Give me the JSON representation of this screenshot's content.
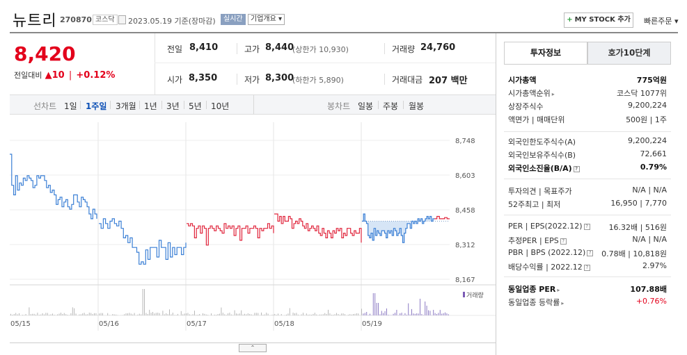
{
  "header": {
    "name": "뉴트리",
    "code": "270870",
    "market": "코스닥",
    "date": "2023.05.19 기준(장마감)",
    "realtime": "실시간",
    "company_overview": "기업개요 ▾",
    "mystock_plus": "+",
    "mystock": "MY STOCK 추가",
    "quick_order": "빠른주문 ▾"
  },
  "price": {
    "current": "8,420",
    "change_label": "전일대비",
    "change_arrow": "▲",
    "change_amount": "10",
    "change_pct": "+0.12%"
  },
  "summary": {
    "prev_label": "전일",
    "prev": "8,410",
    "high_label": "고가",
    "high": "8,440",
    "upper_limit": "(상한가 10,930)",
    "volume_label": "거래량",
    "volume": "24,760",
    "open_label": "시가",
    "open": "8,350",
    "low_label": "저가",
    "low": "8,300",
    "lower_limit": "(하한가 5,890)",
    "amount_label": "거래대금",
    "amount": "207 백만"
  },
  "tabs": {
    "line_label": "선차트",
    "line_periods": [
      "1일",
      "1주일",
      "3개월",
      "1년",
      "3년",
      "5년",
      "10년"
    ],
    "active": "1주일",
    "candle_label": "봉차트",
    "candle_periods": [
      "일봉",
      "주봉",
      "월봉"
    ]
  },
  "chart_data": {
    "type": "line",
    "y_ticks": [
      "8,748",
      "8,603",
      "8,458",
      "8,312",
      "8,167"
    ],
    "ylim": [
      8167,
      8748
    ],
    "x_ticks": [
      "05/15",
      "05/16",
      "05/17",
      "05/18",
      "05/19"
    ],
    "volume_label": "거래량",
    "series": [
      {
        "day": "05/15",
        "color": "#3a7fd5",
        "values": [
          8690,
          8560,
          8520,
          8600,
          8540,
          8570,
          8560,
          8590,
          8580,
          8600,
          8590,
          8580,
          8550,
          8560,
          8600,
          8590,
          8600,
          8600,
          8580,
          8550,
          8560,
          8530,
          8540,
          8520,
          8480,
          8500,
          8510,
          8470,
          8490,
          8500,
          8470,
          8460,
          8480,
          8520,
          8520,
          8490,
          8470,
          8510,
          8500,
          8490,
          8470,
          8440,
          8420,
          8460,
          8440,
          8420
        ]
      },
      {
        "day": "05/16",
        "color": "#3a7fd5",
        "values": [
          8400,
          8380,
          8420,
          8400,
          8380,
          8410,
          8420,
          8400,
          8390,
          8410,
          8380,
          8340,
          8350,
          8320,
          8340,
          8300,
          8300,
          8280,
          8230,
          8240,
          8230,
          8290,
          8250,
          8300,
          8300,
          8300,
          8260,
          8330,
          8300,
          8300,
          8250,
          8320,
          8260,
          8300,
          8270,
          8300,
          8300,
          8270,
          8300,
          8320
        ]
      },
      {
        "day": "05/17",
        "color": "#e0243b",
        "values": [
          8400,
          8390,
          8400,
          8390,
          8340,
          8380,
          8390,
          8360,
          8390,
          8380,
          8310,
          8380,
          8390,
          8380,
          8370,
          8390,
          8380,
          8370,
          8360,
          8400,
          8380,
          8390,
          8380,
          8390,
          8350,
          8380,
          8390,
          8330,
          8380,
          8380,
          8390,
          8360,
          8380,
          8380,
          8390,
          8380,
          8340,
          8380,
          8370,
          8380,
          8380,
          8400,
          8380,
          8390,
          8360
        ]
      },
      {
        "day": "05/18",
        "color": "#e0243b",
        "values": [
          8440,
          8440,
          8410,
          8430,
          8400,
          8430,
          8410,
          8410,
          8430,
          8420,
          8380,
          8400,
          8410,
          8400,
          8420,
          8410,
          8390,
          8380,
          8400,
          8370,
          8380,
          8390,
          8380,
          8370,
          8390,
          8360,
          8350,
          8380,
          8360,
          8340,
          8370,
          8360,
          8340,
          8370,
          8360,
          8380,
          8370,
          8380,
          8340,
          8360,
          8350,
          8380,
          8380,
          8360,
          8350,
          8370,
          8360,
          8360,
          8380,
          8320
        ]
      },
      {
        "day": "05/19",
        "color": "#3a7fd5",
        "fill": true,
        "values": [
          8410,
          8440,
          8410,
          8400,
          8350,
          8340,
          8360,
          8330,
          8380,
          8350,
          8370,
          8360,
          8350,
          8370,
          8370,
          8360,
          8340,
          8370,
          8360,
          8370,
          8350,
          8380,
          8370,
          8350,
          8360,
          8380,
          8350,
          8320,
          8360,
          8380,
          8400,
          8400,
          8380,
          8410,
          8400,
          8410,
          8400,
          8420,
          8410,
          8420,
          8400,
          8410,
          8420,
          8430,
          8420,
          8430,
          8410,
          8420,
          8420
        ]
      },
      {
        "day": "05/19",
        "color": "#e0243b",
        "values": [
          8420,
          8430,
          8420,
          8420,
          8425,
          8420,
          8420
        ]
      }
    ],
    "reference_line": 8410
  },
  "right_panel": {
    "tab_invest": "투자정보",
    "tab_orderbook": "호가10단계",
    "rows": [
      {
        "label": "시가총액",
        "value": "775억원",
        "bold": true
      },
      {
        "label": "시가총액순위",
        "value": "코스닥 1077위",
        "arrow": true
      },
      {
        "label": "상장주식수",
        "value": "9,200,224"
      },
      {
        "label": "액면가 | 매매단위",
        "value": "500원 | 1주"
      },
      {
        "label": "외국인한도주식수(A)",
        "value": "9,200,224"
      },
      {
        "label": "외국인보유주식수(B)",
        "value": "72,661"
      },
      {
        "label": "외국인소진율(B/A)",
        "value": "0.79%",
        "bold": true,
        "q": true
      },
      {
        "label": "투자의견 | 목표주가",
        "value": "N/A | N/A"
      },
      {
        "label": "52주최고 | 최저",
        "value": "16,950 | 7,770"
      },
      {
        "label": "PER | EPS(2022.12)",
        "value": "16.32배 | 516원",
        "q": true
      },
      {
        "label": "추정PER | EPS",
        "value": "N/A | N/A",
        "q": true
      },
      {
        "label": "PBR | BPS (2022.12)",
        "value": "0.78배 | 10,818원",
        "q": true
      },
      {
        "label": "배당수익률 | 2022.12",
        "value": "2.97%",
        "q": true
      },
      {
        "label": "동일업종 PER",
        "value": "107.88배",
        "bold": true,
        "arrow": true
      },
      {
        "label": "동일업종 등락률",
        "value": "+0.76%",
        "arrow": true,
        "red": true
      }
    ]
  }
}
